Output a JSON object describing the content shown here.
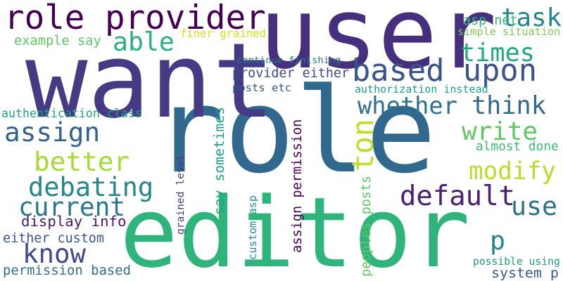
{
  "words": [
    {
      "text": "role",
      "color": "#31688e",
      "rot": 0
    },
    {
      "text": "want",
      "color": "#443b84",
      "rot": 0
    },
    {
      "text": "user",
      "color": "#46307e",
      "rot": 0
    },
    {
      "text": "editor",
      "color": "#2fb47c",
      "rot": 0
    },
    {
      "text": "role provider",
      "color": "#440154",
      "rot": 0
    },
    {
      "text": "based upon",
      "color": "#3b528b",
      "rot": 0
    },
    {
      "text": "whether",
      "color": "#2c728e",
      "rot": 0
    },
    {
      "text": "think",
      "color": "#31688e",
      "rot": 0
    },
    {
      "text": "task",
      "color": "#25858e",
      "rot": 0
    },
    {
      "text": "able",
      "color": "#2ab07f",
      "rot": 0
    },
    {
      "text": "times",
      "color": "#22a884",
      "rot": 0
    },
    {
      "text": "assign",
      "color": "#33628d",
      "rot": 0
    },
    {
      "text": "write",
      "color": "#5ec962",
      "rot": 0
    },
    {
      "text": "better",
      "color": "#a5db36",
      "rot": 0
    },
    {
      "text": "ton",
      "color": "#bddf26",
      "rot": 270
    },
    {
      "text": "modify",
      "color": "#b8de29",
      "rot": 0
    },
    {
      "text": "debating",
      "color": "#24868e",
      "rot": 0
    },
    {
      "text": "default",
      "color": "#482173",
      "rot": 0
    },
    {
      "text": "current",
      "color": "#2a788e",
      "rot": 0
    },
    {
      "text": "use",
      "color": "#2d708e",
      "rot": 0
    },
    {
      "text": "know",
      "color": "#3e4a89",
      "rot": 0
    },
    {
      "text": "p",
      "color": "#26828e",
      "rot": 0
    },
    {
      "text": "asp net",
      "color": "#35b779",
      "rot": 0
    },
    {
      "text": "simple situation",
      "color": "#7ad151",
      "rot": 0
    },
    {
      "text": "example say",
      "color": "#5ec962",
      "rot": 0
    },
    {
      "text": "finer grained",
      "color": "#d8e219",
      "rot": 0
    },
    {
      "text": "continue finishing",
      "color": "#2a788e",
      "rot": 0
    },
    {
      "text": "provider either",
      "color": "#3e4a89",
      "rot": 0
    },
    {
      "text": "posts etc",
      "color": "#39568c",
      "rot": 0
    },
    {
      "text": "authorization instead",
      "color": "#1f9e89",
      "rot": 0
    },
    {
      "text": "authentication class",
      "color": "#20a486",
      "rot": 0
    },
    {
      "text": "almost done",
      "color": "#3dbc74",
      "rot": 0
    },
    {
      "text": "say sometimes",
      "color": "#20a386",
      "rot": 270
    },
    {
      "text": "assign permission",
      "color": "#440154",
      "rot": 270
    },
    {
      "text": "grained level",
      "color": "#453781",
      "rot": 270
    },
    {
      "text": "custom asp",
      "color": "#21918c",
      "rot": 270
    },
    {
      "text": "peoples posts",
      "color": "#5ec962",
      "rot": 270
    },
    {
      "text": "display info",
      "color": "#481a6c",
      "rot": 0
    },
    {
      "text": "either custom",
      "color": "#3a548c",
      "rot": 0
    },
    {
      "text": "permission based",
      "color": "#2e6e8e",
      "rot": 0
    },
    {
      "text": "possible using",
      "color": "#1e9b8a",
      "rot": 0
    },
    {
      "text": "system p",
      "color": "#365c8d",
      "rot": 0
    }
  ]
}
